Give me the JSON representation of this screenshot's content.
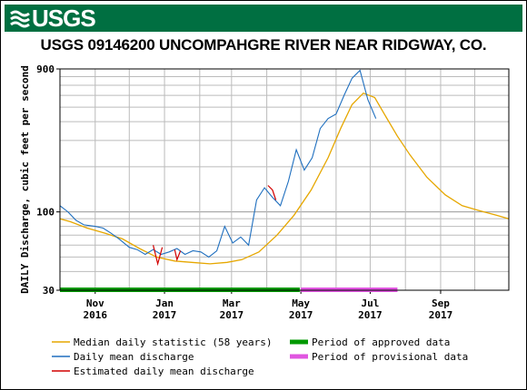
{
  "header": {
    "logo_text": "USGS",
    "logo_icon": "usgs-wave-icon"
  },
  "colors": {
    "banner": "#006f41",
    "median": "#e6a700",
    "daily": "#1f6fbf",
    "estimated": "#d20000",
    "approved": "#009900",
    "provisional": "#e055e0",
    "grid": "#bbbbbb"
  },
  "chart_data": {
    "type": "line",
    "title": "USGS 09146200 UNCOMPAHGRE RIVER NEAR RIDGWAY, CO.",
    "ylabel": "DAILY Discharge, cubic feet per second",
    "xlabel": "",
    "y_scale": "log",
    "ylim": [
      30,
      900
    ],
    "y_ticks": [
      {
        "value": 900,
        "label": "900"
      },
      {
        "value": 100,
        "label": "100"
      },
      {
        "value": 30,
        "label": "30"
      }
    ],
    "xlim": [
      "2016-10-01",
      "2017-10-31"
    ],
    "x_ticks": [
      {
        "date": "2016-11-01",
        "month": "Nov",
        "year": "2016"
      },
      {
        "date": "2017-01-01",
        "month": "Jan",
        "year": "2017"
      },
      {
        "date": "2017-03-01",
        "month": "Mar",
        "year": "2017"
      },
      {
        "date": "2017-05-01",
        "month": "May",
        "year": "2017"
      },
      {
        "date": "2017-07-01",
        "month": "Jul",
        "year": "2017"
      },
      {
        "date": "2017-09-01",
        "month": "Sep",
        "year": "2017"
      }
    ],
    "grid": true,
    "series": [
      {
        "name": "Median daily statistic (58 years)",
        "style": "line",
        "points": [
          [
            "2016-10-01",
            90
          ],
          [
            "2016-10-10",
            86
          ],
          [
            "2016-10-25",
            78
          ],
          [
            "2016-11-10",
            72
          ],
          [
            "2016-11-25",
            66
          ],
          [
            "2016-12-10",
            57
          ],
          [
            "2016-12-25",
            50
          ],
          [
            "2017-01-10",
            47
          ],
          [
            "2017-01-25",
            46
          ],
          [
            "2017-02-10",
            45
          ],
          [
            "2017-02-25",
            46
          ],
          [
            "2017-03-10",
            48
          ],
          [
            "2017-03-25",
            54
          ],
          [
            "2017-04-10",
            70
          ],
          [
            "2017-04-25",
            95
          ],
          [
            "2017-05-10",
            140
          ],
          [
            "2017-05-25",
            230
          ],
          [
            "2017-06-05",
            360
          ],
          [
            "2017-06-15",
            520
          ],
          [
            "2017-06-25",
            620
          ],
          [
            "2017-07-05",
            580
          ],
          [
            "2017-07-15",
            430
          ],
          [
            "2017-07-25",
            320
          ],
          [
            "2017-08-05",
            240
          ],
          [
            "2017-08-20",
            170
          ],
          [
            "2017-09-05",
            130
          ],
          [
            "2017-09-20",
            110
          ],
          [
            "2017-10-05",
            102
          ],
          [
            "2017-10-20",
            95
          ],
          [
            "2017-10-31",
            90
          ]
        ]
      },
      {
        "name": "Daily mean discharge",
        "style": "line",
        "points": [
          [
            "2016-10-01",
            110
          ],
          [
            "2016-10-08",
            100
          ],
          [
            "2016-10-15",
            88
          ],
          [
            "2016-10-22",
            82
          ],
          [
            "2016-11-01",
            80
          ],
          [
            "2016-11-08",
            78
          ],
          [
            "2016-11-15",
            72
          ],
          [
            "2016-11-22",
            66
          ],
          [
            "2016-12-01",
            58
          ],
          [
            "2016-12-08",
            56
          ],
          [
            "2016-12-15",
            52
          ],
          [
            "2016-12-22",
            56
          ],
          [
            "2016-12-29",
            52
          ],
          [
            "2017-01-05",
            54
          ],
          [
            "2017-01-12",
            57
          ],
          [
            "2017-01-19",
            52
          ],
          [
            "2017-01-26",
            55
          ],
          [
            "2017-02-02",
            54
          ],
          [
            "2017-02-09",
            50
          ],
          [
            "2017-02-16",
            55
          ],
          [
            "2017-02-23",
            80
          ],
          [
            "2017-03-02",
            62
          ],
          [
            "2017-03-09",
            68
          ],
          [
            "2017-03-16",
            60
          ],
          [
            "2017-03-23",
            120
          ],
          [
            "2017-03-30",
            145
          ],
          [
            "2017-04-06",
            125
          ],
          [
            "2017-04-13",
            110
          ],
          [
            "2017-04-20",
            160
          ],
          [
            "2017-04-27",
            260
          ],
          [
            "2017-05-04",
            190
          ],
          [
            "2017-05-11",
            230
          ],
          [
            "2017-05-18",
            360
          ],
          [
            "2017-05-25",
            420
          ],
          [
            "2017-06-01",
            450
          ],
          [
            "2017-06-08",
            600
          ],
          [
            "2017-06-15",
            780
          ],
          [
            "2017-06-22",
            880
          ],
          [
            "2017-06-29",
            560
          ],
          [
            "2017-07-06",
            420
          ]
        ]
      },
      {
        "name": "Estimated daily mean discharge",
        "style": "line",
        "segments": [
          [
            [
              "2016-12-22",
              60
            ],
            [
              "2016-12-26",
              45
            ],
            [
              "2016-12-30",
              58
            ]
          ],
          [
            [
              "2017-01-10",
              56
            ],
            [
              "2017-01-12",
              48
            ],
            [
              "2017-01-15",
              55
            ]
          ],
          [
            [
              "2017-04-02",
              150
            ],
            [
              "2017-04-06",
              140
            ],
            [
              "2017-04-09",
              120
            ]
          ]
        ]
      }
    ],
    "periods": [
      {
        "name": "Period of approved data",
        "start": "2016-10-01",
        "end": "2017-04-30"
      },
      {
        "name": "Period of provisional data",
        "start": "2017-05-01",
        "end": "2017-07-25"
      }
    ],
    "legend_position": "bottom"
  }
}
